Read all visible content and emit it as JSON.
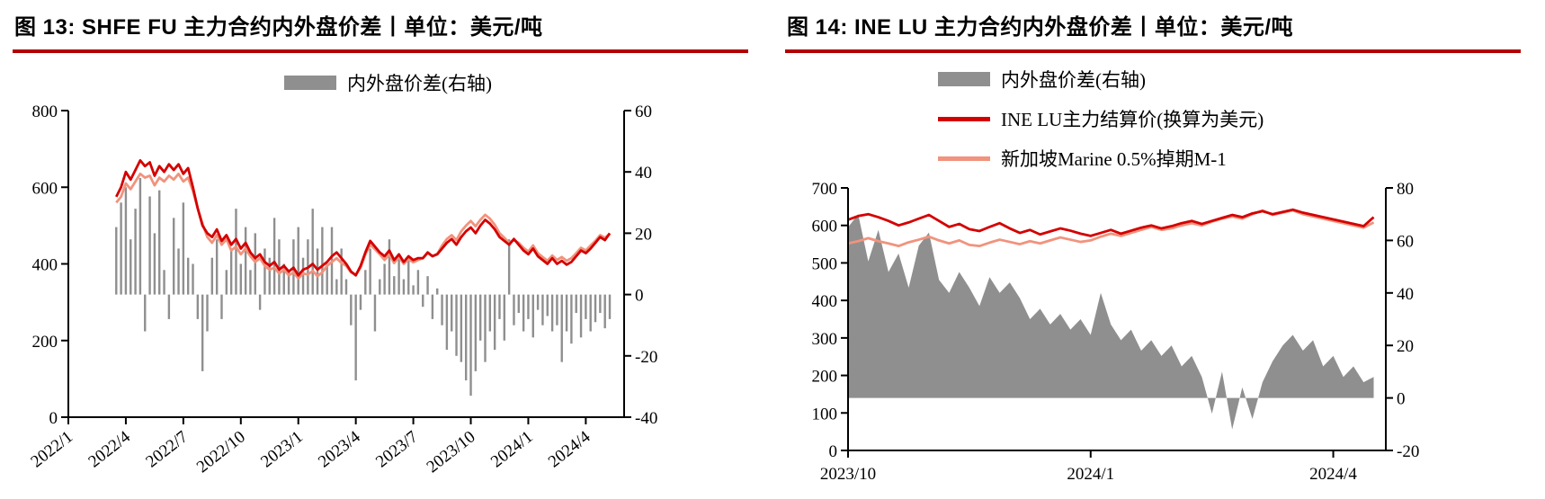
{
  "page_background": "#ffffff",
  "chart_data": [
    {
      "type": "combo",
      "title": "图 13: SHFE FU 主力合约内外盘价差丨单位：美元/吨",
      "legend_items": [
        {
          "label": "内外盘价差(右轴)",
          "color": "#8f8f8f",
          "kind": "bar"
        }
      ],
      "left_ylim": [
        0,
        800
      ],
      "left_ticks": [
        0,
        200,
        400,
        600,
        800
      ],
      "right_ylim": [
        -40,
        60
      ],
      "right_ticks": [
        -40,
        -20,
        0,
        20,
        40,
        60
      ],
      "x_min": 0,
      "x_max": 29,
      "x_start": 2.5,
      "x_step": 0.25,
      "x_ticks": [
        {
          "t": 0,
          "label": "2022/1"
        },
        {
          "t": 3,
          "label": "2022/4"
        },
        {
          "t": 6,
          "label": "2022/7"
        },
        {
          "t": 9,
          "label": "2022/10"
        },
        {
          "t": 12,
          "label": "2023/1"
        },
        {
          "t": 15,
          "label": "2023/4"
        },
        {
          "t": 18,
          "label": "2023/7"
        },
        {
          "t": 21,
          "label": "2023/10"
        },
        {
          "t": 24,
          "label": "2024/1"
        },
        {
          "t": 27,
          "label": "2024/4"
        }
      ],
      "grid": false,
      "legend_position": "top-center",
      "series": [
        {
          "name": "内外盘价差(右轴)",
          "kind": "bar",
          "axis": "right",
          "color": "#8f8f8f",
          "values": [
            22,
            30,
            35,
            18,
            28,
            38,
            -12,
            32,
            20,
            34,
            8,
            -8,
            25,
            15,
            30,
            12,
            10,
            -8,
            -25,
            -12,
            12,
            18,
            -8,
            8,
            15,
            28,
            10,
            22,
            8,
            20,
            -5,
            15,
            12,
            25,
            18,
            10,
            8,
            18,
            22,
            12,
            18,
            28,
            15,
            22,
            10,
            22,
            5,
            15,
            5,
            -10,
            -28,
            -5,
            8,
            15,
            -12,
            5,
            10,
            18,
            6,
            12,
            5,
            12,
            3,
            8,
            -4,
            6,
            -8,
            2,
            -10,
            -18,
            -12,
            -20,
            -22,
            -28,
            -33,
            -25,
            -15,
            -22,
            -12,
            -18,
            -8,
            -15,
            18,
            -10,
            -6,
            -12,
            -8,
            -14,
            -5,
            -10,
            -7,
            -12,
            -10,
            -22,
            -12,
            -16,
            -6,
            -14,
            -8,
            -12,
            -9,
            -6,
            -11,
            -8
          ]
        },
        {
          "name": "orange-line",
          "kind": "line",
          "axis": "left",
          "color": "#f1937d",
          "values": [
            560,
            575,
            610,
            595,
            615,
            635,
            625,
            630,
            605,
            625,
            615,
            630,
            620,
            635,
            615,
            625,
            590,
            545,
            505,
            470,
            455,
            475,
            450,
            465,
            435,
            445,
            425,
            440,
            420,
            405,
            415,
            395,
            385,
            390,
            375,
            385,
            370,
            378,
            362,
            375,
            372,
            382,
            368,
            378,
            395,
            405,
            415,
            402,
            395,
            378,
            372,
            390,
            425,
            450,
            438,
            425,
            410,
            425,
            402,
            418,
            400,
            412,
            404,
            410,
            415,
            428,
            420,
            426,
            448,
            465,
            475,
            462,
            485,
            500,
            512,
            498,
            515,
            528,
            518,
            502,
            480,
            468,
            455,
            462,
            455,
            442,
            432,
            448,
            428,
            418,
            408,
            422,
            410,
            418,
            408,
            415,
            428,
            442,
            435,
            448,
            460,
            475,
            468,
            478
          ]
        },
        {
          "name": "red-line",
          "kind": "line",
          "axis": "left",
          "color": "#d40000",
          "values": [
            575,
            600,
            640,
            620,
            645,
            670,
            655,
            665,
            630,
            655,
            640,
            660,
            645,
            660,
            635,
            650,
            600,
            545,
            500,
            480,
            470,
            490,
            460,
            475,
            450,
            465,
            440,
            455,
            430,
            415,
            425,
            405,
            395,
            405,
            385,
            395,
            380,
            390,
            370,
            385,
            390,
            400,
            385,
            395,
            405,
            420,
            430,
            415,
            400,
            380,
            370,
            395,
            430,
            460,
            445,
            430,
            420,
            435,
            410,
            425,
            405,
            420,
            410,
            415,
            415,
            430,
            420,
            425,
            440,
            455,
            465,
            450,
            470,
            485,
            495,
            480,
            500,
            515,
            505,
            490,
            470,
            460,
            450,
            465,
            450,
            435,
            425,
            440,
            420,
            410,
            400,
            415,
            400,
            408,
            398,
            405,
            420,
            435,
            428,
            440,
            455,
            470,
            462,
            480
          ]
        }
      ]
    },
    {
      "type": "combo",
      "title": "图 14: INE LU 主力合约内外盘价差丨单位：美元/吨",
      "legend_items": [
        {
          "label": "内外盘价差(右轴)",
          "color": "#8f8f8f",
          "kind": "bar"
        },
        {
          "label": "INE LU主力结算价(换算为美元)",
          "color": "#d40000",
          "kind": "line"
        },
        {
          "label": "新加坡Marine 0.5%掉期M-1",
          "color": "#f1937d",
          "kind": "line"
        }
      ],
      "left_ylim": [
        0,
        700
      ],
      "left_ticks": [
        0,
        100,
        200,
        300,
        400,
        500,
        600,
        700
      ],
      "right_ylim": [
        -20,
        80
      ],
      "right_ticks": [
        -20,
        0,
        20,
        40,
        60,
        80
      ],
      "x_min": 0,
      "x_max": 6.65,
      "x_start": 0,
      "x_step": 0.125,
      "x_ticks": [
        {
          "t": 0,
          "label": "2023/10"
        },
        {
          "t": 3,
          "label": "2024/1"
        },
        {
          "t": 6,
          "label": "2024/4"
        }
      ],
      "grid": false,
      "legend_position": "top-left",
      "series": [
        {
          "name": "内外盘价差(右轴)",
          "kind": "area",
          "axis": "right",
          "color": "#8f8f8f",
          "values": [
            65,
            70,
            52,
            64,
            48,
            55,
            42,
            58,
            63,
            45,
            40,
            48,
            42,
            35,
            46,
            40,
            44,
            38,
            30,
            34,
            28,
            32,
            26,
            30,
            24,
            40,
            28,
            22,
            26,
            18,
            22,
            16,
            20,
            12,
            16,
            8,
            -6,
            10,
            -12,
            4,
            -8,
            6,
            14,
            20,
            24,
            18,
            22,
            12,
            16,
            8,
            12,
            6,
            8
          ]
        },
        {
          "name": "新加坡Marine 0.5%掉期M-1",
          "kind": "line",
          "axis": "left",
          "color": "#f1937d",
          "values": [
            552,
            558,
            566,
            558,
            552,
            545,
            555,
            562,
            570,
            560,
            552,
            560,
            548,
            545,
            554,
            562,
            556,
            550,
            558,
            552,
            560,
            568,
            562,
            556,
            560,
            570,
            578,
            572,
            580,
            588,
            596,
            588,
            592,
            600,
            606,
            600,
            610,
            618,
            624,
            618,
            630,
            640,
            628,
            634,
            640,
            630,
            624,
            618,
            612,
            606,
            600,
            594,
            608
          ]
        },
        {
          "name": "INE LU主力结算价(换算为美元)",
          "kind": "line",
          "axis": "left",
          "color": "#d40000",
          "values": [
            615,
            625,
            630,
            622,
            612,
            600,
            608,
            618,
            628,
            612,
            596,
            604,
            590,
            585,
            596,
            606,
            592,
            580,
            588,
            576,
            584,
            592,
            586,
            578,
            572,
            580,
            588,
            578,
            586,
            594,
            600,
            592,
            598,
            606,
            612,
            604,
            612,
            620,
            628,
            622,
            632,
            638,
            630,
            636,
            642,
            634,
            628,
            622,
            616,
            610,
            604,
            598,
            622
          ]
        }
      ]
    }
  ]
}
